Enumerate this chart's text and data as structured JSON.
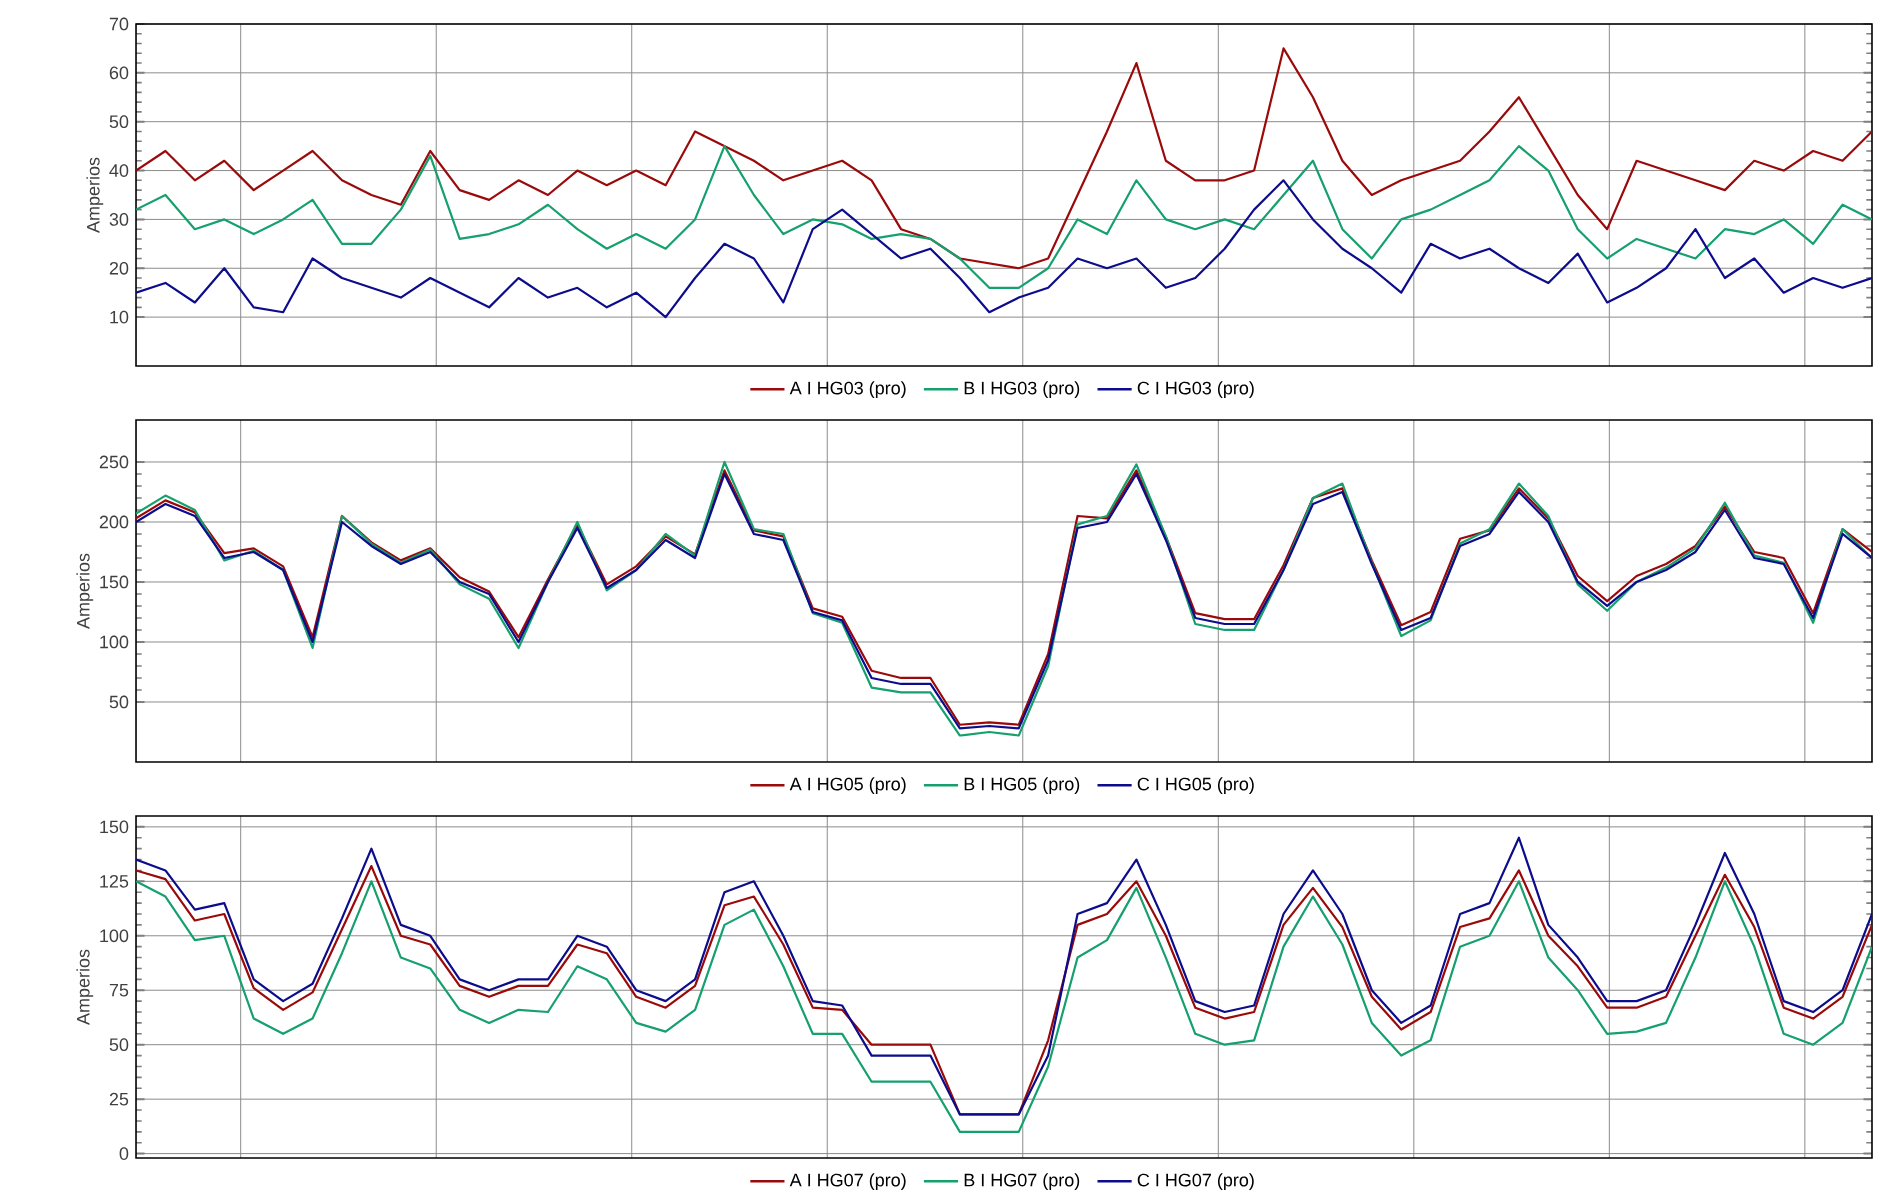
{
  "chart_data": [
    {
      "type": "line",
      "ylabel": "Amperios",
      "categories": [
        null,
        null,
        null,
        null,
        null,
        null,
        null,
        null,
        null,
        null,
        null,
        null,
        null,
        null,
        null,
        null,
        null,
        null,
        null,
        null,
        null,
        null,
        null,
        null,
        null,
        null,
        null,
        null,
        null,
        null,
        null,
        null,
        null,
        null,
        null,
        null,
        null,
        null,
        null,
        null,
        null,
        null,
        null,
        null,
        null,
        null,
        null,
        null,
        null,
        null,
        null,
        null,
        null,
        null,
        null,
        null,
        null,
        null,
        null,
        null
      ],
      "series": [
        {
          "name": "A I HG03 (pro)",
          "color": "#9b0a0a",
          "values": [
            40,
            44,
            38,
            42,
            36,
            40,
            44,
            38,
            35,
            33,
            44,
            36,
            34,
            38,
            35,
            40,
            37,
            40,
            37,
            48,
            45,
            42,
            38,
            40,
            42,
            38,
            28,
            26,
            22,
            21,
            20,
            22,
            35,
            48,
            62,
            42,
            38,
            38,
            40,
            65,
            55,
            42,
            35,
            38,
            40,
            42,
            48,
            55,
            45,
            35,
            28,
            42,
            40,
            38,
            36,
            42,
            40,
            44,
            42,
            48
          ]
        },
        {
          "name": "B I HG03 (pro)",
          "color": "#16a06e",
          "values": [
            32,
            35,
            28,
            30,
            27,
            30,
            34,
            25,
            25,
            32,
            43,
            26,
            27,
            29,
            33,
            28,
            24,
            27,
            24,
            30,
            45,
            35,
            27,
            30,
            29,
            26,
            27,
            26,
            22,
            16,
            16,
            20,
            30,
            27,
            38,
            30,
            28,
            30,
            28,
            35,
            42,
            28,
            22,
            30,
            32,
            35,
            38,
            45,
            40,
            28,
            22,
            26,
            24,
            22,
            28,
            27,
            30,
            25,
            33,
            30
          ]
        },
        {
          "name": "C I HG03 (pro)",
          "color": "#0c0c8c",
          "values": [
            15,
            17,
            13,
            20,
            12,
            11,
            22,
            18,
            16,
            14,
            18,
            15,
            12,
            18,
            14,
            16,
            12,
            15,
            10,
            18,
            25,
            22,
            13,
            28,
            32,
            27,
            22,
            24,
            18,
            11,
            14,
            16,
            22,
            20,
            22,
            16,
            18,
            24,
            32,
            38,
            30,
            24,
            20,
            15,
            25,
            22,
            24,
            20,
            17,
            23,
            13,
            16,
            20,
            28,
            18,
            22,
            15,
            18,
            16,
            18
          ]
        }
      ],
      "ylim": [
        0,
        70
      ],
      "yticks": [
        10,
        20,
        30,
        40,
        50,
        60,
        70
      ],
      "grid": true,
      "legend": "bottom",
      "tick_labels": "y"
    },
    {
      "type": "line",
      "ylabel": "Amperios",
      "categories": [
        null,
        null,
        null,
        null,
        null,
        null,
        null,
        null,
        null,
        null,
        null,
        null,
        null,
        null,
        null,
        null,
        null,
        null,
        null,
        null,
        null,
        null,
        null,
        null,
        null,
        null,
        null,
        null,
        null,
        null,
        null,
        null,
        null,
        null,
        null,
        null,
        null,
        null,
        null,
        null,
        null,
        null,
        null,
        null,
        null,
        null,
        null,
        null,
        null,
        null,
        null,
        null,
        null,
        null,
        null,
        null,
        null,
        null,
        null,
        null
      ],
      "series": [
        {
          "name": "A I HG05 (pro)",
          "color": "#9b0a0a",
          "values": [
            203,
            218,
            208,
            174,
            178,
            163,
            104,
            205,
            183,
            168,
            178,
            154,
            142,
            104,
            152,
            198,
            148,
            163,
            188,
            173,
            243,
            193,
            188,
            128,
            121,
            76,
            70,
            70,
            31,
            33,
            31,
            90,
            205,
            203,
            243,
            188,
            124,
            119,
            119,
            164,
            220,
            228,
            168,
            114,
            125,
            186,
            193,
            228,
            203,
            155,
            134,
            155,
            165,
            180,
            213,
            175,
            170,
            124,
            194,
            175
          ]
        },
        {
          "name": "B I HG05 (pro)",
          "color": "#16a06e",
          "values": [
            207,
            222,
            210,
            168,
            176,
            160,
            95,
            205,
            182,
            166,
            177,
            148,
            136,
            95,
            150,
            200,
            143,
            160,
            190,
            172,
            250,
            194,
            190,
            124,
            116,
            62,
            58,
            58,
            22,
            25,
            22,
            80,
            198,
            205,
            248,
            188,
            115,
            110,
            110,
            160,
            220,
            232,
            166,
            105,
            118,
            182,
            194,
            232,
            205,
            148,
            126,
            150,
            162,
            178,
            216,
            172,
            166,
            116,
            194,
            170
          ]
        },
        {
          "name": "C I HG05 (pro)",
          "color": "#0c0c8c",
          "values": [
            200,
            215,
            205,
            170,
            175,
            160,
            100,
            200,
            180,
            165,
            175,
            150,
            140,
            100,
            150,
            195,
            145,
            160,
            185,
            170,
            240,
            190,
            185,
            125,
            118,
            70,
            65,
            65,
            28,
            30,
            28,
            85,
            195,
            200,
            240,
            185,
            120,
            115,
            115,
            160,
            215,
            225,
            165,
            110,
            120,
            180,
            190,
            225,
            200,
            150,
            130,
            150,
            160,
            175,
            210,
            170,
            165,
            120,
            190,
            170
          ]
        }
      ],
      "ylim": [
        0,
        285
      ],
      "yticks": [
        50,
        100,
        150,
        200,
        250
      ],
      "grid": true,
      "legend": "bottom",
      "tick_labels": "y"
    },
    {
      "type": "line",
      "ylabel": "Amperios",
      "categories": [
        null,
        null,
        null,
        null,
        null,
        null,
        null,
        null,
        null,
        null,
        null,
        null,
        null,
        null,
        null,
        null,
        null,
        null,
        null,
        null,
        null,
        null,
        null,
        null,
        null,
        null,
        null,
        null,
        null,
        null,
        null,
        null,
        null,
        null,
        null,
        null,
        null,
        null,
        null,
        null,
        null,
        null,
        null,
        null,
        null,
        null,
        null,
        null,
        null,
        null,
        null,
        null,
        null,
        null,
        null,
        null,
        null,
        null,
        null,
        null
      ],
      "series": [
        {
          "name": "A I HG07 (pro)",
          "color": "#9b0a0a",
          "values": [
            130,
            126,
            107,
            110,
            76,
            66,
            74,
            103,
            132,
            100,
            96,
            77,
            72,
            77,
            77,
            96,
            92,
            72,
            67,
            77,
            114,
            118,
            96,
            67,
            66,
            50,
            50,
            50,
            18,
            18,
            18,
            52,
            105,
            110,
            125,
            100,
            67,
            62,
            65,
            105,
            122,
            104,
            72,
            57,
            65,
            104,
            108,
            130,
            100,
            86,
            67,
            67,
            72,
            100,
            128,
            104,
            67,
            62,
            72,
            105
          ]
        },
        {
          "name": "B I HG07 (pro)",
          "color": "#16a06e",
          "values": [
            125,
            118,
            98,
            100,
            62,
            55,
            62,
            92,
            125,
            90,
            85,
            66,
            60,
            66,
            65,
            86,
            80,
            60,
            56,
            66,
            105,
            112,
            86,
            55,
            55,
            33,
            33,
            33,
            10,
            10,
            10,
            40,
            90,
            98,
            122,
            90,
            55,
            50,
            52,
            95,
            118,
            96,
            60,
            45,
            52,
            95,
            100,
            125,
            90,
            75,
            55,
            56,
            60,
            90,
            125,
            95,
            55,
            50,
            60,
            95
          ]
        },
        {
          "name": "C I HG07 (pro)",
          "color": "#0c0c8c",
          "values": [
            135,
            130,
            112,
            115,
            80,
            70,
            78,
            108,
            140,
            105,
            100,
            80,
            75,
            80,
            80,
            100,
            95,
            75,
            70,
            80,
            120,
            125,
            100,
            70,
            68,
            45,
            45,
            45,
            18,
            18,
            18,
            45,
            110,
            115,
            135,
            105,
            70,
            65,
            68,
            110,
            130,
            110,
            75,
            60,
            68,
            110,
            115,
            145,
            105,
            90,
            70,
            70,
            75,
            105,
            138,
            110,
            70,
            65,
            75,
            110
          ]
        }
      ],
      "ylim": [
        -2,
        155
      ],
      "yticks": [
        0,
        25,
        50,
        75,
        100,
        125,
        150
      ],
      "grid": true,
      "legend": "bottom",
      "tick_labels": "y"
    }
  ]
}
